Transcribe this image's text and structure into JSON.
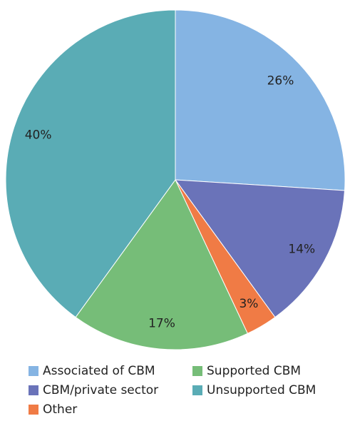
{
  "chart_data": {
    "type": "pie",
    "categories": [
      "Associated of CBM",
      "CBM/private sector",
      "Other",
      "Supported CBM",
      "Unsupported CBM"
    ],
    "values": [
      26,
      14,
      3,
      17,
      40
    ],
    "value_labels": [
      "26%",
      "14%",
      "3%",
      "17%",
      "40%"
    ],
    "colors": [
      "#85b4e3",
      "#6a73b9",
      "#f07b45",
      "#76bd78",
      "#5aacb5"
    ]
  }
}
